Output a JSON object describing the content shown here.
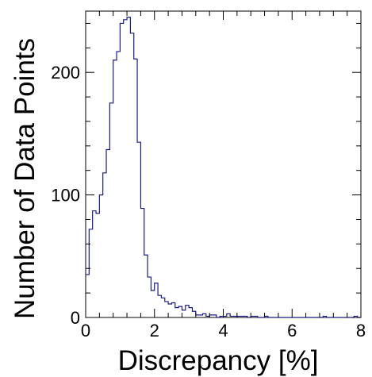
{
  "chart_data": {
    "type": "histogram",
    "title": "",
    "xlabel": "Discrepancy [%]",
    "ylabel": "Number of Data Points",
    "xlim": [
      0,
      8
    ],
    "ylim": [
      0,
      250
    ],
    "xticks": [
      0,
      2,
      4,
      6,
      8
    ],
    "yticks": [
      0,
      100,
      200
    ],
    "x_tick_labels": [
      "0",
      "2",
      "4",
      "6",
      "8"
    ],
    "y_tick_labels": [
      "0",
      "100",
      "200"
    ],
    "grid": false,
    "legend": "none",
    "line_color": "#1a1a8c",
    "bin_width": 0.1,
    "bin_start": 0,
    "values": [
      35,
      72,
      87,
      85,
      100,
      118,
      137,
      175,
      210,
      217,
      240,
      243,
      245,
      232,
      211,
      143,
      89,
      51,
      33,
      22,
      28,
      18,
      16,
      13,
      11,
      12,
      8,
      9,
      6,
      10,
      8,
      5,
      2,
      2,
      3,
      1,
      2,
      2,
      0,
      1,
      1,
      3,
      1,
      1,
      1,
      1,
      1,
      0,
      1,
      1,
      0,
      0,
      1,
      0,
      0,
      0,
      0,
      0,
      0,
      0,
      0,
      0,
      0,
      0,
      0,
      0,
      0,
      0,
      0,
      1,
      0,
      0,
      0,
      0,
      0,
      0,
      0,
      0,
      1,
      0
    ]
  }
}
